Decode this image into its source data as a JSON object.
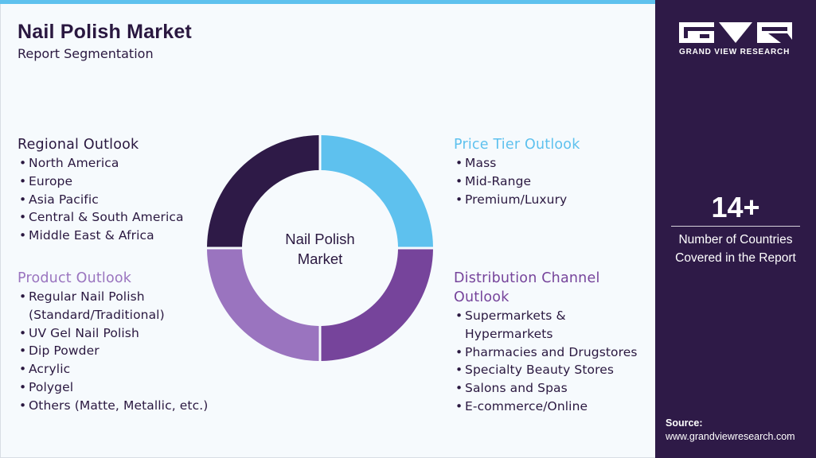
{
  "header": {
    "title": "Nail Polish Market",
    "subtitle": "Report Segmentation"
  },
  "donut": {
    "center_label_line1": "Nail Polish",
    "center_label_line2": "Market",
    "quadrants": [
      {
        "segment": "Price Tier Outlook",
        "color": "#5ec1ee"
      },
      {
        "segment": "Distribution Channel Outlook",
        "color": "#76449b"
      },
      {
        "segment": "Product Outlook",
        "color": "#9a74bf"
      },
      {
        "segment": "Regional Outlook",
        "color": "#2e1a47"
      }
    ]
  },
  "segments": {
    "regional": {
      "title": "Regional Outlook",
      "color": "#2a1840",
      "items": [
        "North America",
        "Europe",
        "Asia Pacific",
        "Central & South America",
        "Middle East & Africa"
      ]
    },
    "product": {
      "title": "Product Outlook",
      "color": "#9a74bf",
      "items": [
        "Regular Nail Polish",
        "(Standard/Traditional)",
        "UV Gel Nail Polish",
        "Dip Powder",
        "Acrylic",
        "Polygel",
        "Others (Matte, Metallic, etc.)"
      ]
    },
    "price": {
      "title": "Price Tier Outlook",
      "color": "#5ec1ee",
      "items": [
        "Mass",
        "Mid-Range",
        "Premium/Luxury"
      ]
    },
    "distribution": {
      "title_line1": "Distribution Channel",
      "title_line2": "Outlook",
      "color": "#76449b",
      "items": [
        "Supermarkets &",
        "Hypermarkets",
        "Pharmacies and Drugstores",
        "Specialty Beauty Stores",
        "Salons and Spas",
        "E-commerce/Online"
      ]
    }
  },
  "sidebar": {
    "logo_icon": "gvr-logo-icon",
    "logo_text": "GRAND VIEW RESEARCH",
    "stat_value": "14+",
    "stat_label_line1": "Number of Countries",
    "stat_label_line2": "Covered in the Report",
    "source_title": "Source:",
    "source_url": "www.grandviewresearch.com",
    "background": "#2e1a47"
  }
}
